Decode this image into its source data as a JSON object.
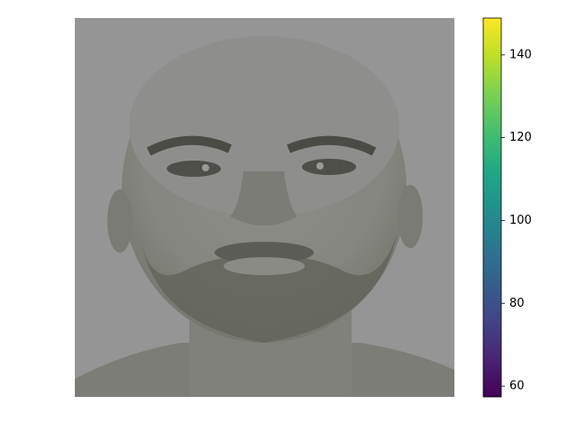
{
  "chart_data": {
    "type": "image",
    "colormap": "viridis",
    "clim": [
      57.4,
      148.9
    ],
    "cticks": [
      60,
      80,
      100,
      120,
      140
    ]
  }
}
